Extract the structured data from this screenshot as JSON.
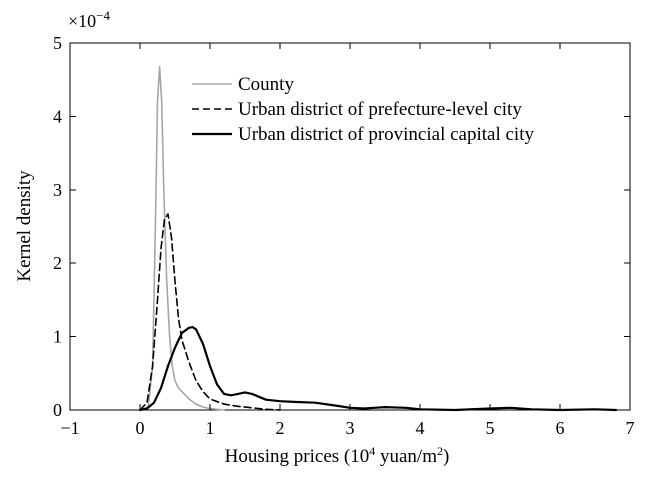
{
  "chart_data": {
    "type": "line",
    "xlabel_prefix": "Housing prices (10",
    "xlabel_sup1": "4",
    "xlabel_mid": " yuan/m",
    "xlabel_sup2": "2",
    "xlabel_suffix": ")",
    "ylabel": "Kernel density",
    "y_multiplier_base": "×10",
    "y_multiplier_exp": "−4",
    "xlim": [
      -1,
      7
    ],
    "ylim": [
      0,
      5
    ],
    "xticks": [
      -1,
      0,
      1,
      2,
      3,
      4,
      5,
      6,
      7
    ],
    "xtick_labels": [
      "−1",
      "0",
      "1",
      "2",
      "3",
      "4",
      "5",
      "6",
      "7"
    ],
    "yticks": [
      0,
      1,
      2,
      3,
      4,
      5
    ],
    "ytick_labels": [
      "0",
      "1",
      "2",
      "3",
      "4",
      "5"
    ],
    "legend_position": "top-right",
    "series": [
      {
        "name": "County",
        "color": "#a6a6a6",
        "dash": "solid",
        "x": [
          0.05,
          0.12,
          0.18,
          0.22,
          0.25,
          0.28,
          0.31,
          0.34,
          0.38,
          0.42,
          0.46,
          0.5,
          0.55,
          0.6,
          0.65,
          0.7,
          0.8,
          0.9,
          1.0,
          1.1,
          1.2
        ],
        "y": [
          0.0,
          0.05,
          0.6,
          2.5,
          4.2,
          4.68,
          4.2,
          3.0,
          1.8,
          1.05,
          0.6,
          0.4,
          0.3,
          0.25,
          0.2,
          0.15,
          0.08,
          0.04,
          0.02,
          0.01,
          0.0
        ]
      },
      {
        "name": "Urban district of prefecture-level city",
        "color": "#000000",
        "dash": "dashed",
        "x": [
          0.0,
          0.1,
          0.18,
          0.25,
          0.3,
          0.35,
          0.4,
          0.45,
          0.5,
          0.55,
          0.6,
          0.7,
          0.8,
          0.9,
          1.0,
          1.2,
          1.4,
          1.6,
          1.8,
          2.0
        ],
        "y": [
          0.0,
          0.1,
          0.6,
          1.5,
          2.2,
          2.6,
          2.67,
          2.35,
          1.75,
          1.25,
          0.95,
          0.65,
          0.4,
          0.25,
          0.15,
          0.08,
          0.05,
          0.03,
          0.01,
          0.0
        ]
      },
      {
        "name": "Urban district of provincial capital city",
        "color": "#000000",
        "dash": "solid",
        "x": [
          0.0,
          0.1,
          0.2,
          0.3,
          0.4,
          0.5,
          0.6,
          0.7,
          0.75,
          0.8,
          0.9,
          1.0,
          1.1,
          1.2,
          1.3,
          1.4,
          1.5,
          1.6,
          1.7,
          1.8,
          2.0,
          2.2,
          2.5,
          2.8,
          3.0,
          3.2,
          3.5,
          3.8,
          4.0,
          4.5,
          5.0,
          5.3,
          5.6,
          6.0,
          6.5,
          6.8
        ],
        "y": [
          0.0,
          0.02,
          0.1,
          0.3,
          0.6,
          0.85,
          1.05,
          1.12,
          1.13,
          1.1,
          0.9,
          0.6,
          0.35,
          0.22,
          0.2,
          0.22,
          0.24,
          0.22,
          0.18,
          0.14,
          0.12,
          0.11,
          0.1,
          0.06,
          0.03,
          0.02,
          0.04,
          0.03,
          0.01,
          0.0,
          0.02,
          0.03,
          0.01,
          0.0,
          0.01,
          0.0
        ]
      }
    ]
  }
}
